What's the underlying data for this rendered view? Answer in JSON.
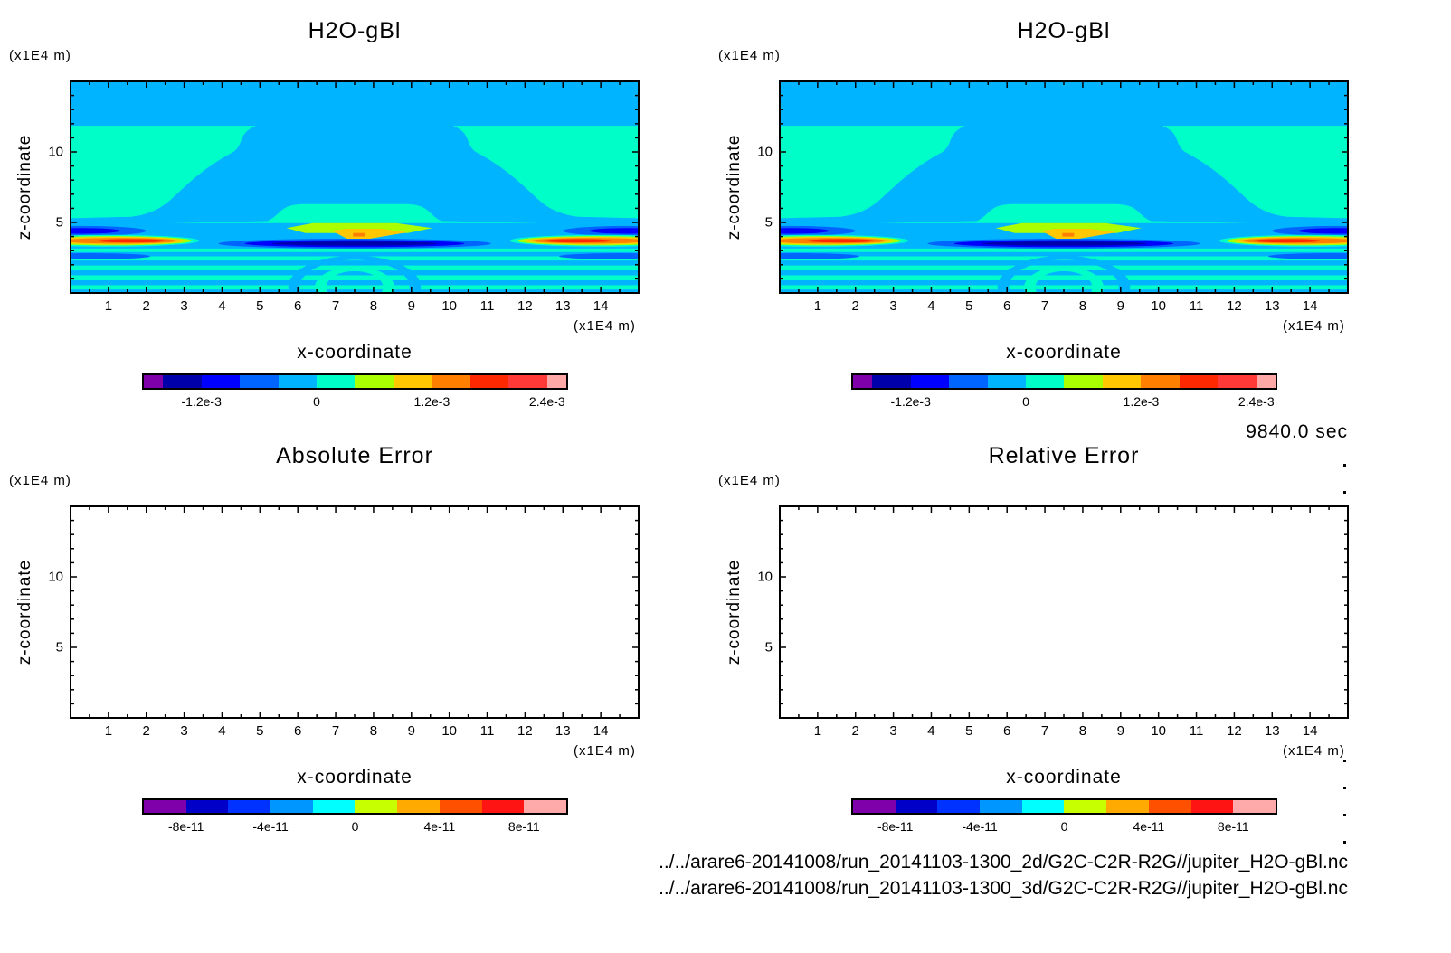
{
  "time_label": "9840.0 sec",
  "files": [
    "../../arare6-20141008/run_20141103-1300_2d/G2C-C2R-R2G//jupiter_H2O-gBl.nc",
    "../../arare6-20141008/run_20141103-1300_3d/G2C-C2R-R2G//jupiter_H2O-gBl.nc"
  ],
  "chart_data": [
    {
      "type": "heatmap",
      "title": "H2O-gBl",
      "xlabel": "x-coordinate",
      "ylabel": "z-coordinate",
      "x_unit": "(x1E4 m)",
      "y_unit": "(x1E4 m)",
      "xlim": [
        0,
        15
      ],
      "ylim": [
        0,
        15
      ],
      "xticks": [
        1,
        2,
        3,
        4,
        5,
        6,
        7,
        8,
        9,
        10,
        11,
        12,
        13,
        14
      ],
      "xtick_labels": [
        "1",
        "2",
        "3",
        "4",
        "5",
        "6",
        "7",
        "8",
        "9",
        "10",
        "11",
        "12",
        "13",
        "14"
      ],
      "yticks": [
        5,
        10
      ],
      "ytick_labels": [
        "5",
        "10"
      ],
      "filled": true,
      "colorbar": {
        "levels": [
          -0.0016,
          -0.0012,
          -0.0008,
          -0.0004,
          0,
          0.0004,
          0.0008,
          0.0012,
          0.0016,
          0.002,
          0.0024
        ],
        "colors": [
          "#7f00aa",
          "#0000aa",
          "#0000ff",
          "#0064ff",
          "#00b4ff",
          "#00ffc8",
          "#aaff00",
          "#ffc800",
          "#ff7f00",
          "#ff2800",
          "#ff3838",
          "#ffa8a8"
        ],
        "label_values": [
          -0.0012,
          0,
          0.0012,
          0.0024
        ],
        "labels": [
          "-1.2e-3",
          "0",
          "1.2e-3",
          "2.4e-3"
        ]
      }
    },
    {
      "type": "heatmap",
      "title": "H2O-gBl",
      "xlabel": "x-coordinate",
      "ylabel": "z-coordinate",
      "x_unit": "(x1E4 m)",
      "y_unit": "(x1E4 m)",
      "xlim": [
        0,
        15
      ],
      "ylim": [
        0,
        15
      ],
      "xticks": [
        1,
        2,
        3,
        4,
        5,
        6,
        7,
        8,
        9,
        10,
        11,
        12,
        13,
        14
      ],
      "xtick_labels": [
        "1",
        "2",
        "3",
        "4",
        "5",
        "6",
        "7",
        "8",
        "9",
        "10",
        "11",
        "12",
        "13",
        "14"
      ],
      "yticks": [
        5,
        10
      ],
      "ytick_labels": [
        "5",
        "10"
      ],
      "filled": true,
      "colorbar": {
        "levels": [
          -0.0016,
          -0.0012,
          -0.0008,
          -0.0004,
          0,
          0.0004,
          0.0008,
          0.0012,
          0.0016,
          0.002,
          0.0024
        ],
        "colors": [
          "#7f00aa",
          "#0000aa",
          "#0000ff",
          "#0064ff",
          "#00b4ff",
          "#00ffc8",
          "#aaff00",
          "#ffc800",
          "#ff7f00",
          "#ff2800",
          "#ff3838",
          "#ffa8a8"
        ],
        "label_values": [
          -0.0012,
          0,
          0.0012,
          0.0024
        ],
        "labels": [
          "-1.2e-3",
          "0",
          "1.2e-3",
          "2.4e-3"
        ]
      }
    },
    {
      "type": "heatmap",
      "title": "Absolute Error",
      "xlabel": "x-coordinate",
      "ylabel": "z-coordinate",
      "x_unit": "(x1E4 m)",
      "y_unit": "(x1E4 m)",
      "xlim": [
        0,
        15
      ],
      "ylim": [
        0,
        15
      ],
      "xticks": [
        1,
        2,
        3,
        4,
        5,
        6,
        7,
        8,
        9,
        10,
        11,
        12,
        13,
        14
      ],
      "xtick_labels": [
        "1",
        "2",
        "3",
        "4",
        "5",
        "6",
        "7",
        "8",
        "9",
        "10",
        "11",
        "12",
        "13",
        "14"
      ],
      "yticks": [
        5,
        10
      ],
      "ytick_labels": [
        "5",
        "10"
      ],
      "filled": false,
      "colorbar": {
        "levels": [
          -8e-11,
          -6e-11,
          -4e-11,
          -2e-11,
          0,
          2e-11,
          4e-11,
          6e-11,
          8e-11
        ],
        "colors": [
          "#7f00aa",
          "#0000c8",
          "#0032ff",
          "#0096ff",
          "#00ffff",
          "#c8ff00",
          "#ffaa00",
          "#ff5000",
          "#ff1414",
          "#ffaaaa"
        ],
        "label_values": [
          -8e-11,
          -4e-11,
          0,
          4e-11,
          8e-11
        ],
        "labels": [
          "-8e-11",
          "-4e-11",
          "0",
          "4e-11",
          "8e-11"
        ]
      }
    },
    {
      "type": "heatmap",
      "title": "Relative Error",
      "xlabel": "x-coordinate",
      "ylabel": "z-coordinate",
      "x_unit": "(x1E4 m)",
      "y_unit": "(x1E4 m)",
      "xlim": [
        0,
        15
      ],
      "ylim": [
        0,
        15
      ],
      "xticks": [
        1,
        2,
        3,
        4,
        5,
        6,
        7,
        8,
        9,
        10,
        11,
        12,
        13,
        14
      ],
      "xtick_labels": [
        "1",
        "2",
        "3",
        "4",
        "5",
        "6",
        "7",
        "8",
        "9",
        "10",
        "11",
        "12",
        "13",
        "14"
      ],
      "yticks": [
        5,
        10
      ],
      "ytick_labels": [
        "5",
        "10"
      ],
      "filled": false,
      "colorbar": {
        "levels": [
          -8e-11,
          -6e-11,
          -4e-11,
          -2e-11,
          0,
          2e-11,
          4e-11,
          6e-11,
          8e-11
        ],
        "colors": [
          "#7f00aa",
          "#0000c8",
          "#0032ff",
          "#0096ff",
          "#00ffff",
          "#c8ff00",
          "#ffaa00",
          "#ff5000",
          "#ff1414",
          "#ffaaaa"
        ],
        "label_values": [
          -8e-11,
          -4e-11,
          0,
          4e-11,
          8e-11
        ],
        "labels": [
          "-8e-11",
          "-4e-11",
          "0",
          "4e-11",
          "8e-11"
        ]
      }
    }
  ]
}
